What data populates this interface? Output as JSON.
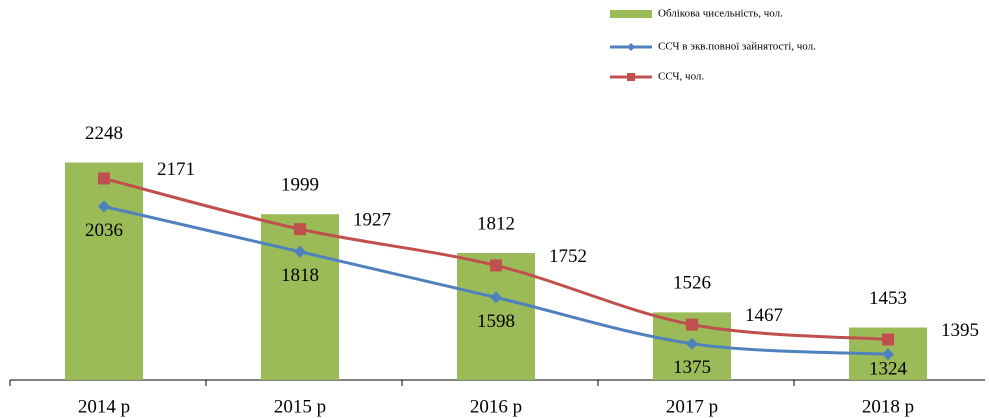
{
  "chart_data": {
    "type": "bar_line",
    "categories": [
      "2014 р",
      "2015 р",
      "2016 р",
      "2017 р",
      "2018 р"
    ],
    "ylim": [
      1200,
      2400
    ],
    "series": [
      {
        "name": "Облікова чисельність,  чол.",
        "type": "bar",
        "color": "#9bbb59",
        "values": [
          2248,
          1999,
          1812,
          1526,
          1453
        ]
      },
      {
        "name": "ССЧ в экв.повної зайнятості,  чол.",
        "type": "line",
        "marker": "diamond",
        "color": "#4f81bd",
        "values": [
          2036,
          1818,
          1598,
          1375,
          1324
        ]
      },
      {
        "name": "ССЧ, чол.",
        "type": "line",
        "marker": "square",
        "color": "#c0504d",
        "values": [
          2171,
          1927,
          1752,
          1467,
          1395
        ]
      }
    ]
  }
}
